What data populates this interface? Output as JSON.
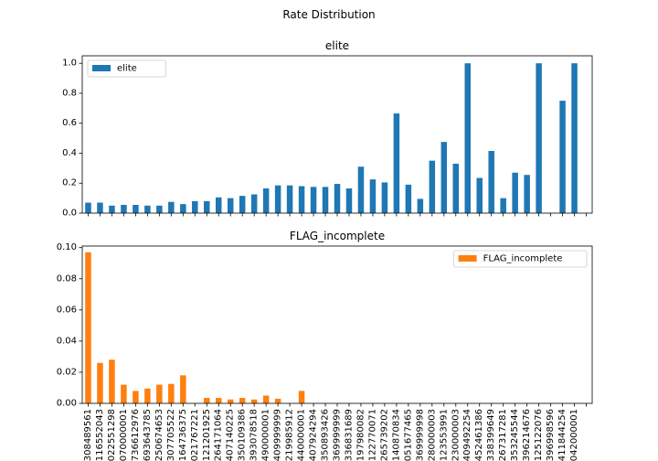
{
  "figure": {
    "suptitle": "Rate Distribution"
  },
  "chart_data": [
    {
      "type": "bar",
      "title": "elite",
      "xlabel": "",
      "ylabel": "",
      "ylim": [
        0,
        1.05
      ],
      "yticks": [
        "0.0",
        "0.2",
        "0.4",
        "0.6",
        "0.8",
        "1.0"
      ],
      "grid": false,
      "legend": "top-left",
      "color": "#1f77b4",
      "show_xticklabels": false,
      "series": [
        {
          "name": "elite",
          "values": [
            0.07,
            0.07,
            0.05,
            0.055,
            0.055,
            0.05,
            0.05,
            0.075,
            0.06,
            0.08,
            0.08,
            0.105,
            0.1,
            0.115,
            0.125,
            0.165,
            0.185,
            0.185,
            0.18,
            0.175,
            0.175,
            0.195,
            0.165,
            0.31,
            0.225,
            0.205,
            0.665,
            0.19,
            0.095,
            0.35,
            0.475,
            0.33,
            1.0,
            0.235,
            0.415,
            0.1,
            0.27,
            0.255,
            1.0,
            0.0,
            0.75,
            1.0,
            0.0
          ]
        }
      ]
    },
    {
      "type": "bar",
      "title": "FLAG_incomplete",
      "xlabel": "",
      "ylabel": "",
      "ylim": [
        0,
        0.101
      ],
      "yticks": [
        "0.00",
        "0.02",
        "0.04",
        "0.06",
        "0.08",
        "0.10"
      ],
      "grid": false,
      "legend": "top-right",
      "color": "#ff7f0e",
      "show_xticklabels": true,
      "categories": [
        "308489561",
        "116552043",
        "022551298",
        "070000001",
        "736612976",
        "693643785",
        "250674653",
        "307705522",
        "164736375",
        "021767221",
        "121201925",
        "264171064",
        "407140225",
        "350109386",
        "393078518",
        "490000001",
        "409999999",
        "219985912",
        "440000001",
        "407924294",
        "350893426",
        "369999999",
        "336831689",
        "197980082",
        "122770071",
        "265739202",
        "140870834",
        "051677465",
        "369999998",
        "280000003",
        "123553991",
        "230000003",
        "409492254",
        "452461386",
        "338399649",
        "267317281",
        "353245544",
        "396214676",
        "125122076",
        "396998596",
        "411844254",
        "042000001",
        ""
      ],
      "series": [
        {
          "name": "FLAG_incomplete",
          "values": [
            0.097,
            0.026,
            0.028,
            0.012,
            0.008,
            0.0095,
            0.012,
            0.0125,
            0.018,
            0.0,
            0.0035,
            0.0035,
            0.0025,
            0.0035,
            0.0025,
            0.005,
            0.003,
            0.0,
            0.008,
            0.0,
            0.0,
            0.0,
            0.0,
            0.0,
            0.0,
            0.0,
            0.0,
            0.0,
            0.0,
            0.0,
            0.0,
            0.0,
            0.0,
            0.0,
            0.0,
            0.0,
            0.0,
            0.0,
            0.0,
            0.0,
            0.0,
            0.0,
            0.0
          ]
        }
      ]
    }
  ]
}
